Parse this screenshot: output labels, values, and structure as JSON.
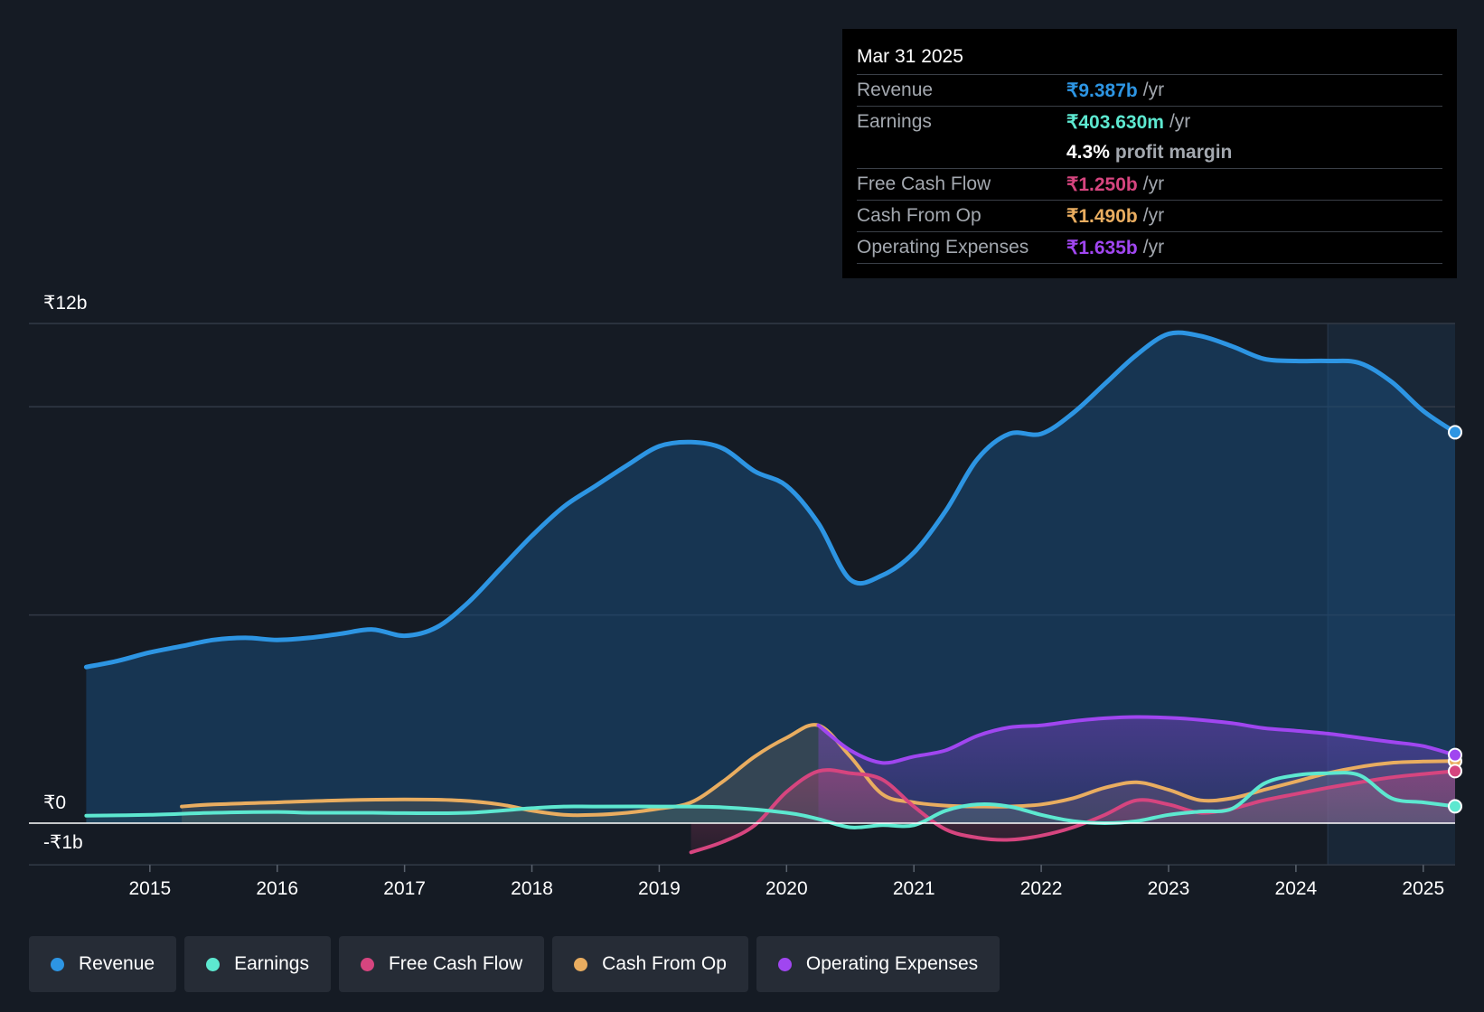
{
  "colors": {
    "background": "#151b24",
    "revenue": "#2d95e3",
    "earnings": "#5de8d0",
    "free_cash_flow": "#d6457f",
    "cash_from_op": "#e9ad60",
    "operating_expenses": "#a046f0"
  },
  "tooltip": {
    "date": "Mar 31 2025",
    "rows": [
      {
        "label": "Revenue",
        "value": "₹9.387b",
        "unit": "/yr"
      },
      {
        "label": "Earnings",
        "value": "₹403.630m",
        "unit": "/yr"
      },
      {
        "margin_value": "4.3%",
        "margin_label": "profit margin"
      },
      {
        "label": "Free Cash Flow",
        "value": "₹1.250b",
        "unit": "/yr"
      },
      {
        "label": "Cash From Op",
        "value": "₹1.490b",
        "unit": "/yr"
      },
      {
        "label": "Operating Expenses",
        "value": "₹1.635b",
        "unit": "/yr"
      }
    ]
  },
  "legend": [
    {
      "label": "Revenue",
      "series": "revenue"
    },
    {
      "label": "Earnings",
      "series": "earnings"
    },
    {
      "label": "Free Cash Flow",
      "series": "free_cash_flow"
    },
    {
      "label": "Cash From Op",
      "series": "cash_from_op"
    },
    {
      "label": "Operating Expenses",
      "series": "operating_expenses"
    }
  ],
  "chart_data": {
    "type": "area",
    "title": "",
    "xlabel": "",
    "ylabel": "",
    "y_unit": "₹b",
    "ylim": [
      -1,
      12
    ],
    "xlim": [
      2014.05,
      2025.25
    ],
    "y_tick_labels": [
      {
        "value": 12,
        "label": "₹12b"
      },
      {
        "value": 0,
        "label": "₹0"
      },
      {
        "value": -1,
        "label": "-₹1b"
      }
    ],
    "gridlines": [
      12,
      10,
      5,
      0
    ],
    "x_ticks": [
      {
        "value": 2015,
        "label": "2015"
      },
      {
        "value": 2016,
        "label": "2016"
      },
      {
        "value": 2017,
        "label": "2017"
      },
      {
        "value": 2018,
        "label": "2018"
      },
      {
        "value": 2019,
        "label": "2019"
      },
      {
        "value": 2020,
        "label": "2020"
      },
      {
        "value": 2021,
        "label": "2021"
      },
      {
        "value": 2022,
        "label": "2022"
      },
      {
        "value": 2023,
        "label": "2023"
      },
      {
        "value": 2024,
        "label": "2024"
      },
      {
        "value": 2025,
        "label": "2025"
      }
    ],
    "forecast_from": 2024.25,
    "series": [
      {
        "name": "Revenue",
        "key": "revenue",
        "points": [
          [
            2014.5,
            3.75
          ],
          [
            2014.75,
            3.9
          ],
          [
            2015.0,
            4.1
          ],
          [
            2015.25,
            4.25
          ],
          [
            2015.5,
            4.4
          ],
          [
            2015.75,
            4.45
          ],
          [
            2016.0,
            4.4
          ],
          [
            2016.25,
            4.45
          ],
          [
            2016.5,
            4.55
          ],
          [
            2016.75,
            4.65
          ],
          [
            2017.0,
            4.5
          ],
          [
            2017.25,
            4.7
          ],
          [
            2017.5,
            5.3
          ],
          [
            2017.75,
            6.1
          ],
          [
            2018.0,
            6.9
          ],
          [
            2018.25,
            7.6
          ],
          [
            2018.5,
            8.1
          ],
          [
            2018.75,
            8.6
          ],
          [
            2019.0,
            9.05
          ],
          [
            2019.25,
            9.15
          ],
          [
            2019.5,
            9.0
          ],
          [
            2019.75,
            8.45
          ],
          [
            2020.0,
            8.1
          ],
          [
            2020.25,
            7.2
          ],
          [
            2020.5,
            5.85
          ],
          [
            2020.75,
            5.95
          ],
          [
            2021.0,
            6.5
          ],
          [
            2021.25,
            7.5
          ],
          [
            2021.5,
            8.75
          ],
          [
            2021.75,
            9.35
          ],
          [
            2022.0,
            9.35
          ],
          [
            2022.25,
            9.85
          ],
          [
            2022.5,
            10.55
          ],
          [
            2022.75,
            11.25
          ],
          [
            2023.0,
            11.75
          ],
          [
            2023.25,
            11.7
          ],
          [
            2023.5,
            11.45
          ],
          [
            2023.75,
            11.15
          ],
          [
            2024.0,
            11.1
          ],
          [
            2024.25,
            11.1
          ],
          [
            2024.5,
            11.05
          ],
          [
            2024.75,
            10.6
          ],
          [
            2025.0,
            9.9
          ],
          [
            2025.25,
            9.387
          ]
        ]
      },
      {
        "name": "Cash From Op",
        "key": "cash_from_op",
        "points": [
          [
            2015.25,
            0.4
          ],
          [
            2015.5,
            0.45
          ],
          [
            2016.0,
            0.5
          ],
          [
            2016.5,
            0.55
          ],
          [
            2017.0,
            0.57
          ],
          [
            2017.4,
            0.55
          ],
          [
            2017.75,
            0.45
          ],
          [
            2018.0,
            0.3
          ],
          [
            2018.25,
            0.2
          ],
          [
            2018.5,
            0.2
          ],
          [
            2018.75,
            0.25
          ],
          [
            2019.0,
            0.35
          ],
          [
            2019.25,
            0.5
          ],
          [
            2019.5,
            1.0
          ],
          [
            2019.75,
            1.6
          ],
          [
            2020.0,
            2.05
          ],
          [
            2020.25,
            2.35
          ],
          [
            2020.5,
            1.6
          ],
          [
            2020.75,
            0.7
          ],
          [
            2021.0,
            0.5
          ],
          [
            2021.25,
            0.42
          ],
          [
            2021.5,
            0.4
          ],
          [
            2021.75,
            0.4
          ],
          [
            2022.0,
            0.45
          ],
          [
            2022.25,
            0.6
          ],
          [
            2022.5,
            0.85
          ],
          [
            2022.75,
            0.98
          ],
          [
            2023.0,
            0.8
          ],
          [
            2023.25,
            0.55
          ],
          [
            2023.5,
            0.6
          ],
          [
            2023.75,
            0.8
          ],
          [
            2024.0,
            1.0
          ],
          [
            2024.25,
            1.2
          ],
          [
            2024.5,
            1.35
          ],
          [
            2024.75,
            1.45
          ],
          [
            2025.0,
            1.48
          ],
          [
            2025.25,
            1.49
          ]
        ]
      },
      {
        "name": "Operating Expenses",
        "key": "operating_expenses",
        "points": [
          [
            2020.25,
            2.35
          ],
          [
            2020.5,
            1.75
          ],
          [
            2020.75,
            1.45
          ],
          [
            2021.0,
            1.6
          ],
          [
            2021.25,
            1.75
          ],
          [
            2021.5,
            2.1
          ],
          [
            2021.75,
            2.3
          ],
          [
            2022.0,
            2.35
          ],
          [
            2022.25,
            2.45
          ],
          [
            2022.5,
            2.52
          ],
          [
            2022.75,
            2.55
          ],
          [
            2023.0,
            2.53
          ],
          [
            2023.25,
            2.48
          ],
          [
            2023.5,
            2.4
          ],
          [
            2023.75,
            2.28
          ],
          [
            2024.0,
            2.22
          ],
          [
            2024.25,
            2.15
          ],
          [
            2024.5,
            2.05
          ],
          [
            2024.75,
            1.95
          ],
          [
            2025.0,
            1.85
          ],
          [
            2025.25,
            1.635
          ]
        ]
      },
      {
        "name": "Free Cash Flow",
        "key": "free_cash_flow",
        "points": [
          [
            2019.25,
            -0.7
          ],
          [
            2019.5,
            -0.45
          ],
          [
            2019.75,
            -0.05
          ],
          [
            2020.0,
            0.75
          ],
          [
            2020.25,
            1.25
          ],
          [
            2020.5,
            1.2
          ],
          [
            2020.75,
            1.05
          ],
          [
            2021.0,
            0.4
          ],
          [
            2021.25,
            -0.15
          ],
          [
            2021.5,
            -0.35
          ],
          [
            2021.75,
            -0.4
          ],
          [
            2022.0,
            -0.3
          ],
          [
            2022.25,
            -0.1
          ],
          [
            2022.5,
            0.2
          ],
          [
            2022.75,
            0.55
          ],
          [
            2023.0,
            0.45
          ],
          [
            2023.25,
            0.25
          ],
          [
            2023.5,
            0.35
          ],
          [
            2023.75,
            0.55
          ],
          [
            2024.0,
            0.7
          ],
          [
            2024.25,
            0.85
          ],
          [
            2024.5,
            0.98
          ],
          [
            2024.75,
            1.1
          ],
          [
            2025.0,
            1.18
          ],
          [
            2025.25,
            1.25
          ]
        ]
      },
      {
        "name": "Earnings",
        "key": "earnings",
        "points": [
          [
            2014.5,
            0.18
          ],
          [
            2015.0,
            0.2
          ],
          [
            2015.5,
            0.25
          ],
          [
            2016.0,
            0.27
          ],
          [
            2016.25,
            0.25
          ],
          [
            2016.75,
            0.25
          ],
          [
            2017.0,
            0.24
          ],
          [
            2017.5,
            0.25
          ],
          [
            2018.0,
            0.36
          ],
          [
            2018.25,
            0.4
          ],
          [
            2018.5,
            0.4
          ],
          [
            2019.0,
            0.4
          ],
          [
            2019.5,
            0.38
          ],
          [
            2020.0,
            0.25
          ],
          [
            2020.25,
            0.1
          ],
          [
            2020.5,
            -0.1
          ],
          [
            2020.75,
            -0.05
          ],
          [
            2021.0,
            -0.05
          ],
          [
            2021.25,
            0.3
          ],
          [
            2021.5,
            0.45
          ],
          [
            2021.75,
            0.4
          ],
          [
            2022.0,
            0.2
          ],
          [
            2022.25,
            0.05
          ],
          [
            2022.5,
            0.0
          ],
          [
            2022.75,
            0.05
          ],
          [
            2023.0,
            0.2
          ],
          [
            2023.25,
            0.28
          ],
          [
            2023.5,
            0.35
          ],
          [
            2023.75,
            0.95
          ],
          [
            2024.0,
            1.15
          ],
          [
            2024.25,
            1.2
          ],
          [
            2024.5,
            1.15
          ],
          [
            2024.75,
            0.6
          ],
          [
            2025.0,
            0.5
          ],
          [
            2025.25,
            0.404
          ]
        ]
      }
    ]
  }
}
